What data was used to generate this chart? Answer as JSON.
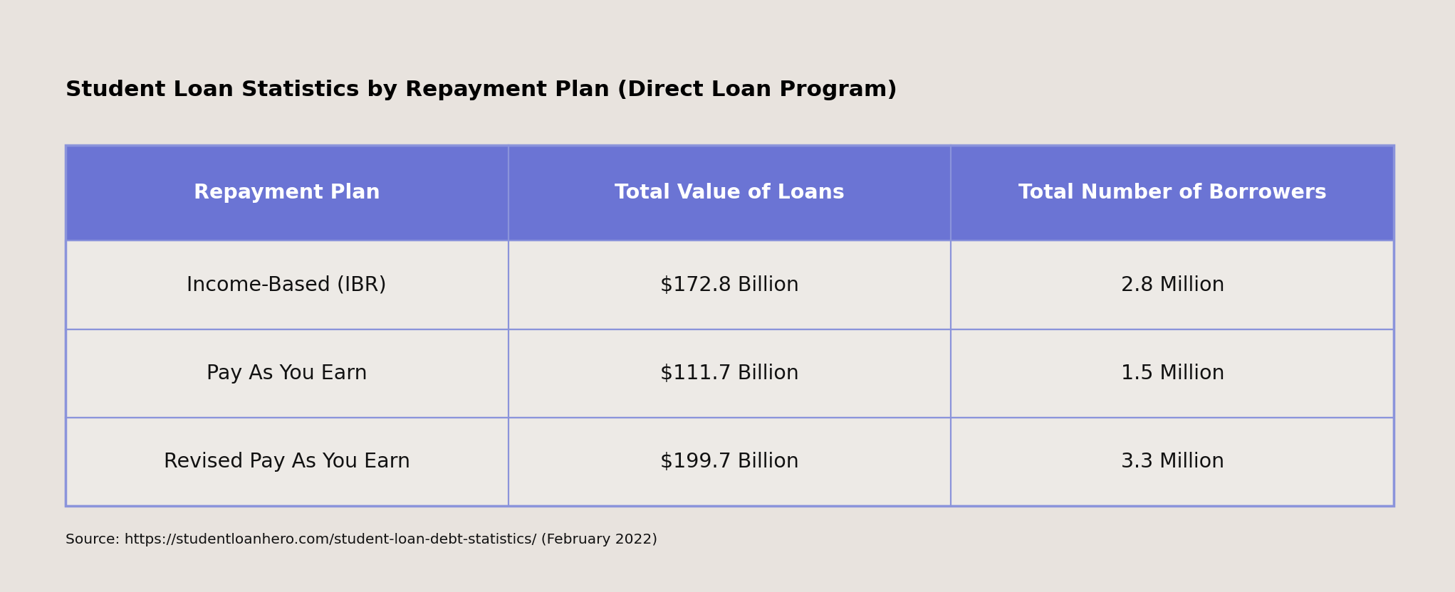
{
  "title": "Student Loan Statistics by Repayment Plan (Direct Loan Program)",
  "source": "Source: https://studentloanhero.com/student-loan-debt-statistics/ (February 2022)",
  "background_color": "#e8e3de",
  "header_bg_color": "#6b74d4",
  "header_text_color": "#ffffff",
  "row_bg_color": "#edeae6",
  "border_color": "#8b94db",
  "cell_text_color": "#111111",
  "title_color": "#000000",
  "source_color": "#111111",
  "columns": [
    "Repayment Plan",
    "Total Value of Loans",
    "Total Number of Borrowers"
  ],
  "rows": [
    [
      "Income-Based (IBR)",
      "$172.8 Billion",
      "2.8 Million"
    ],
    [
      "Pay As You Earn",
      "$111.7 Billion",
      "1.5 Million"
    ],
    [
      "Revised Pay As You Earn",
      "$199.7 Billion",
      "3.3 Million"
    ]
  ],
  "figsize": [
    20.43,
    8.32
  ],
  "dpi": 100
}
